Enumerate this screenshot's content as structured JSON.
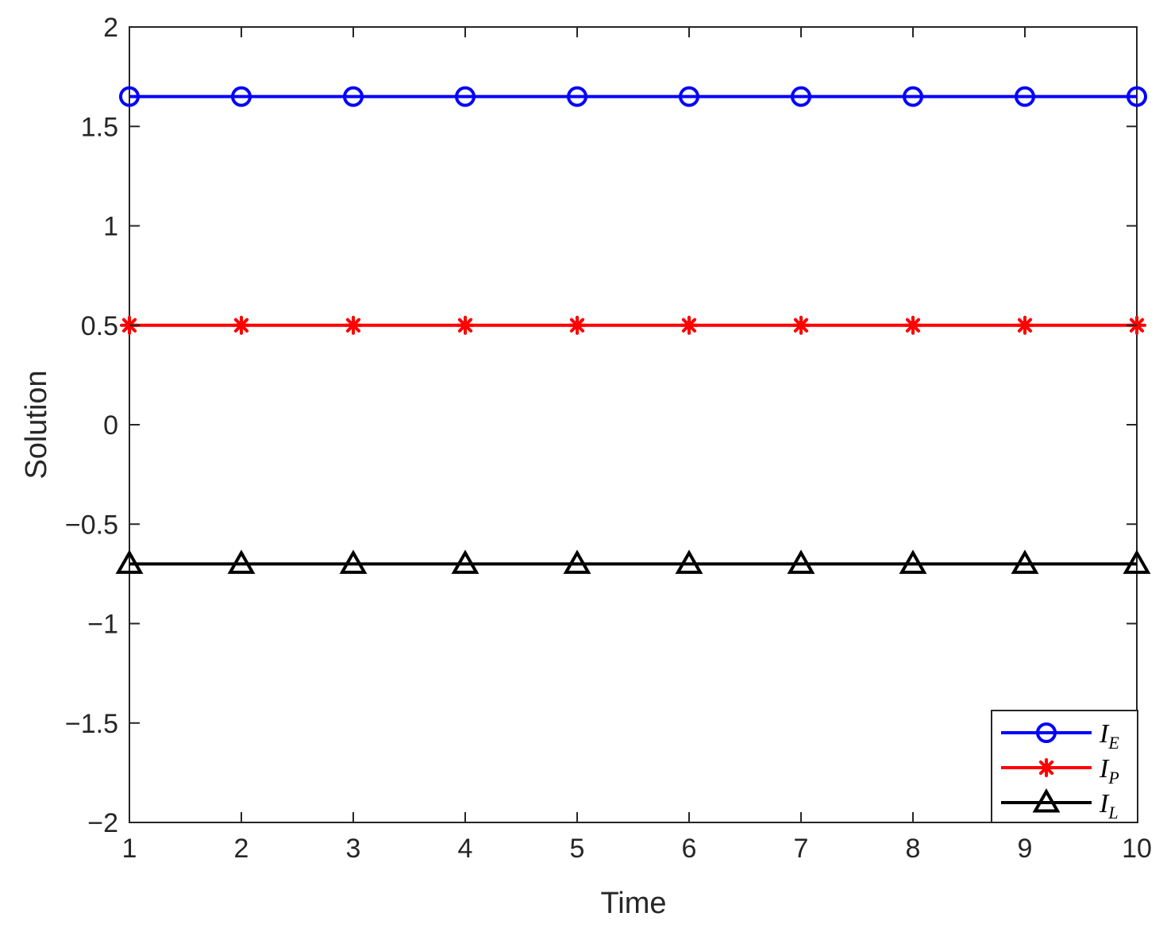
{
  "chart_data": {
    "type": "line",
    "title": "",
    "xlabel": "Time",
    "ylabel": "Solution",
    "xlim": [
      1,
      10
    ],
    "ylim": [
      -2,
      2
    ],
    "xticks": [
      1,
      2,
      3,
      4,
      5,
      6,
      7,
      8,
      9,
      10
    ],
    "xtick_labels": [
      "1",
      "2",
      "3",
      "4",
      "5",
      "6",
      "7",
      "8",
      "9",
      "10"
    ],
    "yticks": [
      -2,
      -1.5,
      -1,
      -0.5,
      0,
      0.5,
      1,
      1.5,
      2
    ],
    "ytick_labels": [
      "−2",
      "−1.5",
      "−1",
      "−0.5",
      "0",
      "0.5",
      "1",
      "1.5",
      "2"
    ],
    "grid": false,
    "legend_position": "bottom-right",
    "x": [
      1,
      2,
      3,
      4,
      5,
      6,
      7,
      8,
      9,
      10
    ],
    "series": [
      {
        "name": "I",
        "subscript": "E",
        "color": "#0000ff",
        "marker": "circle",
        "values": [
          1.65,
          1.65,
          1.65,
          1.65,
          1.65,
          1.65,
          1.65,
          1.65,
          1.65,
          1.65
        ]
      },
      {
        "name": "I",
        "subscript": "P",
        "color": "#ff0000",
        "marker": "asterisk",
        "values": [
          0.5,
          0.5,
          0.5,
          0.5,
          0.5,
          0.5,
          0.5,
          0.5,
          0.5,
          0.5
        ]
      },
      {
        "name": "I",
        "subscript": "L",
        "color": "#000000",
        "marker": "triangle",
        "values": [
          -0.7,
          -0.7,
          -0.7,
          -0.7,
          -0.7,
          -0.7,
          -0.7,
          -0.7,
          -0.7,
          -0.7
        ]
      }
    ]
  }
}
